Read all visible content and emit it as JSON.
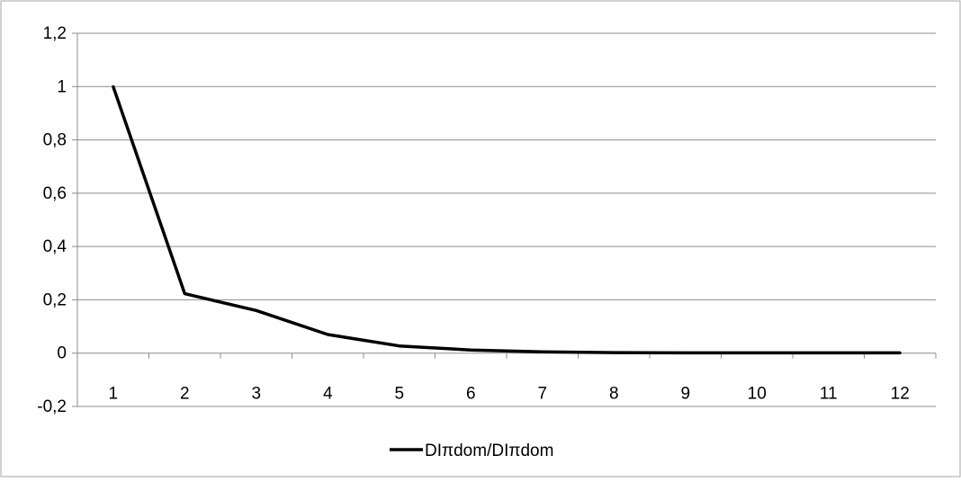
{
  "chart_data": {
    "type": "line",
    "title": "",
    "xlabel": "",
    "ylabel": "",
    "x": [
      "1",
      "2",
      "3",
      "4",
      "5",
      "6",
      "7",
      "8",
      "9",
      "10",
      "11",
      "12"
    ],
    "series": [
      {
        "name": "DIπdom/DIπdom",
        "values": [
          1.0,
          0.223,
          0.16,
          0.07,
          0.027,
          0.012,
          0.005,
          0.002,
          0.001,
          0.001,
          0.001,
          0.001
        ],
        "color": "#000000"
      }
    ],
    "ylim": [
      -0.2,
      1.2
    ],
    "yticks": [
      -0.2,
      0,
      0.2,
      0.4,
      0.6,
      0.8,
      1,
      1.2
    ],
    "ytick_labels": [
      "-0,2",
      "0",
      "0,2",
      "0,4",
      "0,6",
      "0,8",
      "1",
      "1,2"
    ],
    "grid": true,
    "legend_position": "bottom"
  }
}
